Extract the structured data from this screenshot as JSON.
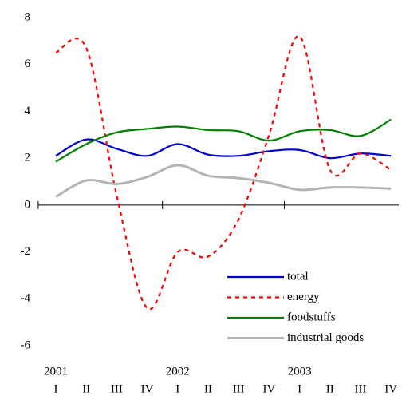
{
  "chart_data": {
    "type": "line",
    "categories": [
      "I",
      "II",
      "III",
      "IV",
      "I",
      "II",
      "III",
      "IV",
      "I",
      "II",
      "III",
      "IV"
    ],
    "year_labels": [
      "2001",
      "2002",
      "2003"
    ],
    "ylim": [
      -6,
      8
    ],
    "yticks": [
      -6,
      -4,
      -2,
      0,
      2,
      4,
      6,
      8
    ],
    "grid": false,
    "legend": "lower right",
    "series": [
      {
        "name": "total",
        "color": "#0000cc",
        "dash": "solid",
        "values": [
          2.1,
          2.8,
          2.4,
          2.1,
          2.6,
          2.15,
          2.1,
          2.3,
          2.35,
          2.0,
          2.2,
          2.1
        ]
      },
      {
        "name": "energy",
        "color": "#ff0000",
        "dash": "dashed",
        "values": [
          6.5,
          6.7,
          0.4,
          -4.4,
          -2.0,
          -2.2,
          -0.6,
          3.0,
          7.2,
          1.5,
          2.2,
          1.5
        ]
      },
      {
        "name": "foodstuffs",
        "color": "#008000",
        "dash": "solid",
        "values": [
          1.85,
          2.6,
          3.1,
          3.25,
          3.35,
          3.2,
          3.15,
          2.75,
          3.15,
          3.2,
          2.95,
          3.65
        ]
      },
      {
        "name": "industrial goods",
        "color": "#b4b4b4",
        "dash": "solid",
        "values": [
          0.35,
          1.05,
          0.9,
          1.2,
          1.7,
          1.25,
          1.15,
          0.95,
          0.65,
          0.75,
          0.75,
          0.7
        ]
      }
    ]
  }
}
